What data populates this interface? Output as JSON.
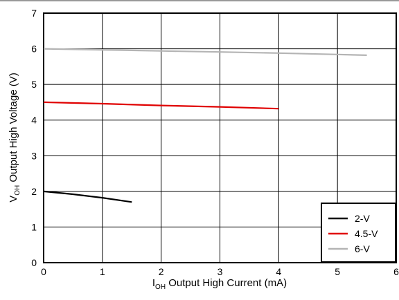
{
  "chart_data": {
    "type": "line",
    "xlabel": {
      "main": "I",
      "sub": "OH",
      "rest": " Output High Current (mA)"
    },
    "ylabel": {
      "main": "V",
      "sub": "OH",
      "rest": " Output High Voltage (V)"
    },
    "xlim": [
      0,
      6
    ],
    "ylim": [
      0,
      7
    ],
    "x_ticks": [
      "0",
      "1",
      "2",
      "3",
      "4",
      "5",
      "6"
    ],
    "y_ticks": [
      "0",
      "1",
      "2",
      "3",
      "4",
      "5",
      "6",
      "7"
    ],
    "grid": true,
    "legend_position": "bottom-right",
    "series": [
      {
        "name": "2-V",
        "color": "#000000",
        "x": [
          0,
          0.5,
          1.0,
          1.5
        ],
        "y": [
          2.0,
          1.92,
          1.82,
          1.7
        ]
      },
      {
        "name": "4.5-V",
        "color": "#e00000",
        "x": [
          0,
          1,
          2,
          3,
          4
        ],
        "y": [
          4.5,
          4.46,
          4.41,
          4.37,
          4.32
        ]
      },
      {
        "name": "6-V",
        "color": "#b4b4b4",
        "x": [
          0,
          1,
          2,
          3,
          4,
          5,
          5.5
        ],
        "y": [
          6.0,
          5.97,
          5.94,
          5.91,
          5.88,
          5.84,
          5.82
        ]
      }
    ]
  }
}
